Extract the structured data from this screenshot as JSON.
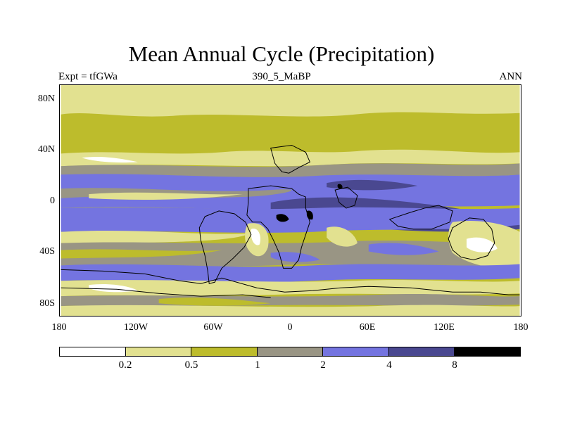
{
  "header": {
    "title": "Mean Annual Cycle (Precipitation)",
    "left": "Expt = tfGWa",
    "center": "390_5_MaBP",
    "right": "ANN"
  },
  "axes": {
    "lat_ticks": [
      {
        "value": 80,
        "label": "80N"
      },
      {
        "value": 40,
        "label": "40N"
      },
      {
        "value": 0,
        "label": "0"
      },
      {
        "value": -40,
        "label": "40S"
      },
      {
        "value": -80,
        "label": "80S"
      }
    ],
    "lon_ticks": [
      {
        "value": -180,
        "label": "180"
      },
      {
        "value": -120,
        "label": "120W"
      },
      {
        "value": -60,
        "label": "60W"
      },
      {
        "value": 0,
        "label": "0"
      },
      {
        "value": 60,
        "label": "60E"
      },
      {
        "value": 120,
        "label": "120E"
      },
      {
        "value": 180,
        "label": "180"
      }
    ]
  },
  "colorbar": {
    "colors": [
      "#ffffff",
      "#e2e190",
      "#bdbc2c",
      "#999584",
      "#7474e0",
      "#4a4890",
      "#000000"
    ],
    "levels": [
      "0.2",
      "0.5",
      "1",
      "2",
      "4",
      "8"
    ]
  },
  "map_colors": {
    "white": "#ffffff",
    "pale": "#e2e190",
    "olive": "#bdbc2c",
    "gray": "#999584",
    "blue": "#7474e0",
    "navy": "#4a4890",
    "black": "#000000"
  }
}
